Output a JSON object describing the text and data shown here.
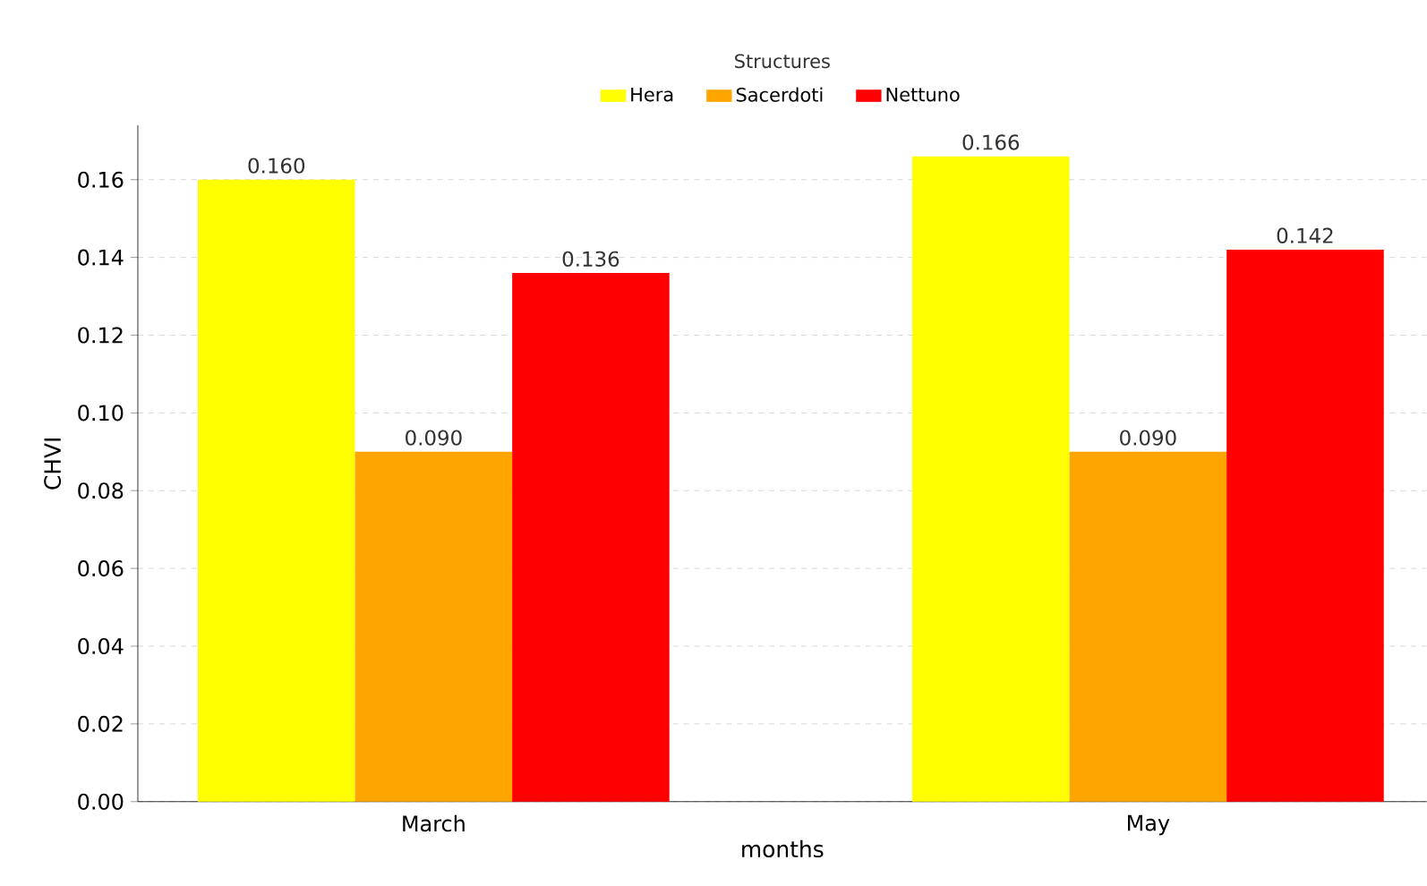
{
  "chart_data": {
    "type": "bar",
    "xlabel": "months",
    "ylabel": "CHVI",
    "legend_title": "Structures",
    "legend": "top",
    "categories": [
      "March",
      "May"
    ],
    "series": [
      {
        "name": "Hera",
        "color": "#ffff00",
        "values": [
          0.16,
          0.166
        ],
        "value_labels": [
          "0.160",
          "0.166"
        ]
      },
      {
        "name": "Sacerdoti",
        "color": "#ffa500",
        "values": [
          0.09,
          0.09
        ],
        "value_labels": [
          "0.090",
          "0.090"
        ]
      },
      {
        "name": "Nettuno",
        "color": "#ff0000",
        "values": [
          0.136,
          0.142
        ],
        "value_labels": [
          "0.136",
          "0.142"
        ]
      }
    ],
    "ylim": [
      0,
      0.174
    ],
    "yticks": [
      {
        "value": 0,
        "label": "0.00"
      },
      {
        "value": 0.02,
        "label": "0.02"
      },
      {
        "value": 0.04,
        "label": "0.04"
      },
      {
        "value": 0.06,
        "label": "0.06"
      },
      {
        "value": 0.08,
        "label": "0.08"
      },
      {
        "value": 0.1,
        "label": "0.10"
      },
      {
        "value": 0.12,
        "label": "0.12"
      },
      {
        "value": 0.14,
        "label": "0.14"
      },
      {
        "value": 0.16,
        "label": "0.16"
      }
    ],
    "grid": "y"
  }
}
